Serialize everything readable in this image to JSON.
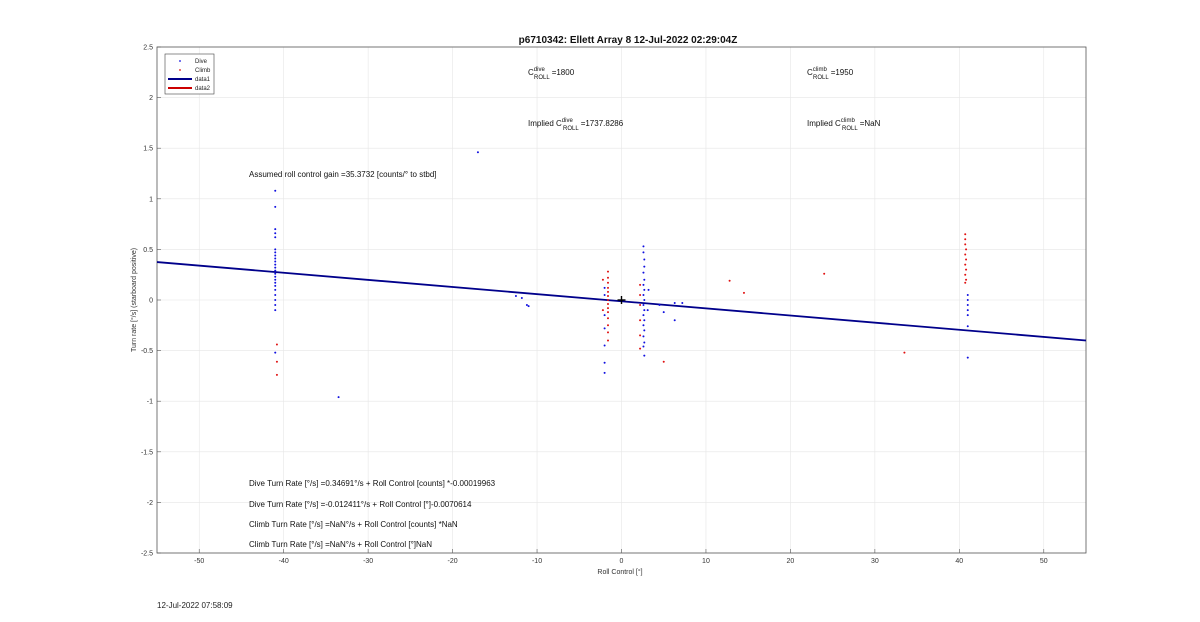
{
  "chart_data": {
    "type": "scatter",
    "title": "p6710342: Ellett Array 8 12-Jul-2022 02:29:04Z",
    "xlabel": "Roll Control [°]",
    "ylabel": "Turn rate [°/s] (starboard positive)",
    "xlim": [
      -55,
      55
    ],
    "ylim": [
      -2.5,
      2.5
    ],
    "xticks": [
      -50,
      -40,
      -30,
      -20,
      -10,
      0,
      10,
      20,
      30,
      40,
      50
    ],
    "yticks": [
      -2.5,
      -2,
      -1.5,
      -1,
      -0.5,
      0,
      0.5,
      1,
      1.5,
      2,
      2.5
    ],
    "grid": true,
    "legend_position": "top-left",
    "legend": [
      "Dive",
      "Climb",
      "data1",
      "data2"
    ],
    "colors": {
      "dive": "#1010e0",
      "climb": "#e01010",
      "data1": "#00008b",
      "data2": "#cc0000"
    },
    "series": [
      {
        "name": "Dive",
        "points": [
          [
            -41,
            1.08
          ],
          [
            -41,
            0.92
          ],
          [
            -41,
            0.7
          ],
          [
            -41,
            0.66
          ],
          [
            -41,
            0.62
          ],
          [
            -41,
            0.5
          ],
          [
            -41,
            0.47
          ],
          [
            -41,
            0.44
          ],
          [
            -41,
            0.41
          ],
          [
            -41,
            0.38
          ],
          [
            -41,
            0.35
          ],
          [
            -41,
            0.32
          ],
          [
            -41,
            0.29
          ],
          [
            -41,
            0.26
          ],
          [
            -41,
            0.23
          ],
          [
            -41,
            0.2
          ],
          [
            -41,
            0.17
          ],
          [
            -41,
            0.14
          ],
          [
            -41,
            0.1
          ],
          [
            -41,
            0.05
          ],
          [
            -41,
            0.0
          ],
          [
            -41,
            -0.05
          ],
          [
            -41,
            -0.1
          ],
          [
            -41,
            -0.52
          ],
          [
            -33.5,
            -0.96
          ],
          [
            -17,
            1.46
          ],
          [
            -12.5,
            0.04
          ],
          [
            -11.8,
            0.02
          ],
          [
            -11.2,
            -0.05
          ],
          [
            -11,
            -0.06
          ],
          [
            -2,
            0.12
          ],
          [
            -2,
            0.05
          ],
          [
            -2,
            -0.15
          ],
          [
            -2,
            -0.28
          ],
          [
            -2,
            -0.45
          ],
          [
            -2,
            -0.62
          ],
          [
            -2,
            -0.72
          ],
          [
            2.6,
            0.53
          ],
          [
            2.6,
            0.47
          ],
          [
            2.7,
            0.4
          ],
          [
            2.7,
            0.33
          ],
          [
            2.6,
            0.27
          ],
          [
            2.7,
            0.2
          ],
          [
            2.6,
            0.15
          ],
          [
            2.7,
            0.1
          ],
          [
            2.6,
            0.05
          ],
          [
            2.7,
            0.0
          ],
          [
            2.6,
            -0.05
          ],
          [
            2.7,
            -0.1
          ],
          [
            2.6,
            -0.15
          ],
          [
            2.7,
            -0.2
          ],
          [
            2.6,
            -0.25
          ],
          [
            2.7,
            -0.3
          ],
          [
            2.6,
            -0.36
          ],
          [
            2.7,
            -0.42
          ],
          [
            2.6,
            -0.46
          ],
          [
            2.7,
            -0.55
          ],
          [
            3.2,
            0.1
          ],
          [
            3.1,
            -0.1
          ],
          [
            4.5,
            -0.05
          ],
          [
            5,
            -0.12
          ],
          [
            6.3,
            -0.03
          ],
          [
            6.3,
            -0.2
          ],
          [
            7.2,
            -0.03
          ],
          [
            41,
            0.05
          ],
          [
            41,
            0.0
          ],
          [
            41,
            -0.05
          ],
          [
            41,
            -0.1
          ],
          [
            41,
            -0.15
          ],
          [
            41,
            -0.26
          ],
          [
            41,
            -0.57
          ]
        ]
      },
      {
        "name": "Climb",
        "points": [
          [
            -40.8,
            -0.44
          ],
          [
            -40.8,
            -0.61
          ],
          [
            -40.8,
            -0.74
          ],
          [
            -1.6,
            0.28
          ],
          [
            -1.6,
            0.22
          ],
          [
            -1.6,
            0.17
          ],
          [
            -1.6,
            0.12
          ],
          [
            -1.6,
            0.08
          ],
          [
            -1.6,
            0.04
          ],
          [
            -1.6,
            0.0
          ],
          [
            -1.6,
            -0.04
          ],
          [
            -1.6,
            -0.08
          ],
          [
            -1.6,
            -0.12
          ],
          [
            -1.6,
            -0.18
          ],
          [
            -1.6,
            -0.25
          ],
          [
            -1.6,
            -0.32
          ],
          [
            -1.6,
            -0.4
          ],
          [
            -2.2,
            0.2
          ],
          [
            -2.2,
            -0.1
          ],
          [
            2.2,
            0.15
          ],
          [
            2.2,
            0.05
          ],
          [
            2.2,
            -0.05
          ],
          [
            2.2,
            -0.2
          ],
          [
            2.2,
            -0.35
          ],
          [
            2.2,
            -0.48
          ],
          [
            5,
            -0.61
          ],
          [
            12.8,
            0.19
          ],
          [
            14.5,
            0.07
          ],
          [
            24,
            0.26
          ],
          [
            33.5,
            -0.52
          ],
          [
            40.7,
            0.65
          ],
          [
            40.7,
            0.6
          ],
          [
            40.7,
            0.55
          ],
          [
            40.8,
            0.5
          ],
          [
            40.7,
            0.45
          ],
          [
            40.8,
            0.4
          ],
          [
            40.7,
            0.35
          ],
          [
            40.8,
            0.3
          ],
          [
            40.7,
            0.25
          ],
          [
            40.8,
            0.2
          ],
          [
            40.7,
            0.17
          ]
        ]
      }
    ],
    "fit_line": {
      "name": "data1",
      "x": [
        -55,
        55
      ],
      "y": [
        0.375,
        -0.4
      ]
    },
    "marker": {
      "x": 0,
      "y": 0
    },
    "annotations": {
      "c_dive_base": "C",
      "c_dive_sup": "dive",
      "c_dive_sub": "ROLL",
      "c_dive_value": "=1800",
      "c_climb_base": "C",
      "c_climb_sup": "climb",
      "c_climb_sub": "ROLL",
      "c_climb_value": "=1950",
      "implied_dive_prefix": "Implied C",
      "implied_dive_sup": "dive",
      "implied_dive_sub": "ROLL",
      "implied_dive_value": "=1737.8286",
      "implied_climb_prefix": "Implied C",
      "implied_climb_sup": "climb",
      "implied_climb_sub": "ROLL",
      "implied_climb_value": "=NaN",
      "gain": "Assumed roll control gain =35.3732 [counts/° to stbd]",
      "eq1": "Dive Turn Rate [°/s] =0.34691°/s + Roll Control [counts] *-0.00019963",
      "eq2": "Dive Turn Rate [°/s] =-0.012411°/s + Roll Control [°]-0.0070614",
      "eq3": "Climb Turn Rate [°/s] =NaN°/s + Roll Control [counts] *NaN",
      "eq4": "Climb Turn Rate [°/s] =NaN°/s + Roll Control [°]NaN"
    }
  },
  "footer": {
    "timestamp": "12-Jul-2022 07:58:09"
  }
}
